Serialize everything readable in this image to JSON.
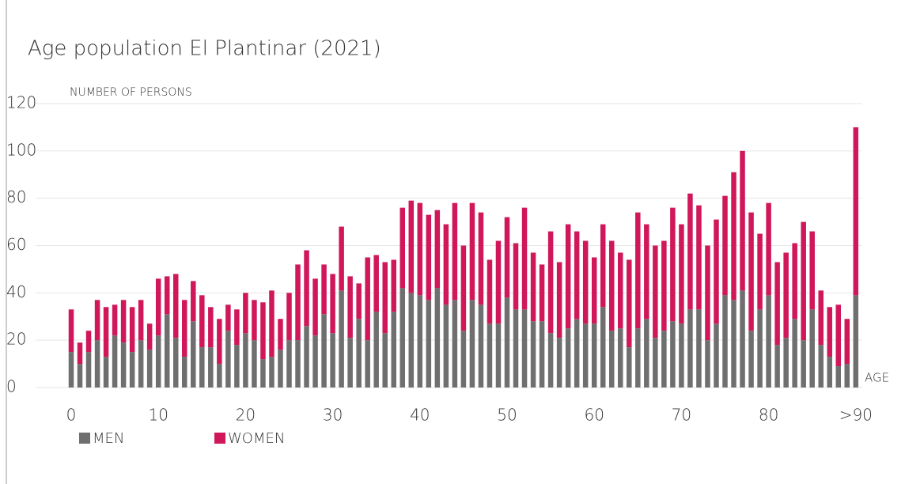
{
  "chart_data": {
    "type": "stacked_bar",
    "title": "Age population El Plantinar (2021)",
    "y_label": "NUMBER OF PERSONS",
    "x_label": "AGE",
    "categories": [
      "0",
      null,
      null,
      null,
      null,
      null,
      null,
      null,
      null,
      null,
      "10",
      null,
      null,
      null,
      null,
      null,
      null,
      null,
      null,
      null,
      "20",
      null,
      null,
      null,
      null,
      null,
      null,
      null,
      null,
      null,
      "30",
      null,
      null,
      null,
      null,
      null,
      null,
      null,
      null,
      null,
      "40",
      null,
      null,
      null,
      null,
      null,
      null,
      null,
      null,
      null,
      "50",
      null,
      null,
      null,
      null,
      null,
      null,
      null,
      null,
      null,
      "60",
      null,
      null,
      null,
      null,
      null,
      null,
      null,
      null,
      null,
      "70",
      null,
      null,
      null,
      null,
      null,
      null,
      null,
      null,
      null,
      "80",
      null,
      null,
      null,
      null,
      null,
      null,
      null,
      null,
      null,
      ">90"
    ],
    "series": [
      {
        "name": "MEN",
        "color": "#6f6f6f",
        "values": [
          15,
          10,
          15,
          20,
          13,
          22,
          19,
          15,
          20,
          16,
          22,
          31,
          21,
          13,
          28,
          17,
          17,
          10,
          24,
          18,
          23,
          20,
          12,
          13,
          16,
          20,
          20,
          26,
          22,
          31,
          23,
          41,
          21,
          29,
          20,
          32,
          23,
          32,
          42,
          40,
          39,
          37,
          42,
          35,
          37,
          24,
          37,
          35,
          27,
          27,
          38,
          33,
          33,
          28,
          28,
          23,
          21,
          25,
          29,
          27,
          27,
          34,
          24,
          25,
          17,
          25,
          29,
          21,
          24,
          28,
          27,
          33,
          33,
          20,
          27,
          39,
          37,
          41,
          24,
          33,
          39,
          18,
          21,
          29,
          20,
          33,
          18,
          13,
          9,
          10,
          39
        ]
      },
      {
        "name": "WOMEN",
        "color": "#d0175a",
        "values": [
          18,
          9,
          9,
          17,
          21,
          13,
          18,
          19,
          17,
          11,
          24,
          16,
          27,
          24,
          17,
          22,
          17,
          19,
          11,
          15,
          17,
          17,
          24,
          28,
          13,
          20,
          32,
          32,
          24,
          21,
          25,
          27,
          26,
          15,
          35,
          24,
          30,
          22,
          34,
          39,
          39,
          36,
          33,
          34,
          41,
          36,
          41,
          39,
          27,
          35,
          34,
          28,
          43,
          29,
          24,
          43,
          32,
          44,
          37,
          35,
          28,
          35,
          38,
          32,
          37,
          49,
          40,
          39,
          38,
          48,
          42,
          49,
          44,
          40,
          44,
          42,
          54,
          59,
          50,
          32,
          39,
          35,
          36,
          32,
          50,
          33,
          23,
          21,
          26,
          19,
          71
        ]
      }
    ],
    "ylim": [
      0,
      120
    ],
    "yticks": [
      0,
      20,
      40,
      60,
      80,
      100,
      120
    ],
    "grid": true
  }
}
